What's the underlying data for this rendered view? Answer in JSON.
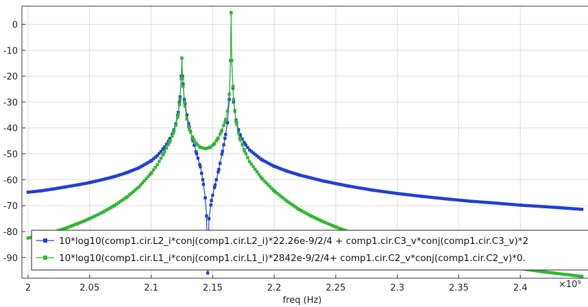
{
  "chart_data": {
    "type": "line",
    "title": "",
    "xlabel": "freq (Hz)",
    "ylabel": "",
    "x_scale_multiplier": "×10⁹",
    "xlim": [
      1.995,
      2.455
    ],
    "ylim": [
      -98,
      7
    ],
    "x_ticks": [
      2,
      2.05,
      2.1,
      2.15,
      2.2,
      2.25,
      2.3,
      2.35,
      2.4
    ],
    "x_tick_labels": [
      "2",
      "2.05",
      "2.1",
      "2.15",
      "2.2",
      "2.25",
      "2.3",
      "2.35",
      "2.4"
    ],
    "y_ticks": [
      0,
      -10,
      -20,
      -30,
      -40,
      -50,
      -60,
      -70,
      -80,
      -90
    ],
    "y_tick_labels": [
      "0",
      "-10",
      "-20",
      "-30",
      "-40",
      "-50",
      "-60",
      "-70",
      "-80",
      "-90"
    ],
    "grid": true,
    "legend_position": "bottom",
    "series": [
      {
        "name": "10*log10(comp1.cir.L2_i*conj(comp1.cir.L2_i)*22.26e-9/2/4 + comp1.cir.C3_v*conj(comp1.cir.C3_v)*2",
        "color": "#1f3fd6",
        "marker": "square",
        "x": [
          2.0,
          2.01,
          2.02,
          2.03,
          2.04,
          2.05,
          2.06,
          2.07,
          2.08,
          2.09,
          2.1,
          2.105,
          2.11,
          2.115,
          2.118,
          2.12,
          2.122,
          2.1235,
          2.1245,
          2.125,
          2.1255,
          2.127,
          2.129,
          2.131,
          2.134,
          2.137,
          2.14,
          2.142,
          2.144,
          2.145,
          2.146,
          2.147,
          2.149,
          2.152,
          2.155,
          2.158,
          2.16,
          2.162,
          2.1635,
          2.1645,
          2.165,
          2.1655,
          2.167,
          2.169,
          2.172,
          2.176,
          2.18,
          2.19,
          2.2,
          2.21,
          2.22,
          2.24,
          2.26,
          2.28,
          2.3,
          2.32,
          2.34,
          2.36,
          2.38,
          2.4,
          2.42,
          2.45
        ],
        "y": [
          -64.8,
          -64.3,
          -63.6,
          -62.8,
          -62.0,
          -61.1,
          -60.0,
          -58.8,
          -57.3,
          -55.4,
          -52.7,
          -50.7,
          -48.0,
          -44.5,
          -41.5,
          -38.5,
          -34.0,
          -28.0,
          -20.0,
          -13.0,
          -20.0,
          -29.0,
          -35.0,
          -39.5,
          -45.0,
          -50.0,
          -55.0,
          -60.0,
          -67.0,
          -74.0,
          -96.0,
          -75.0,
          -68.0,
          -62.0,
          -56.0,
          -49.0,
          -44.0,
          -38.0,
          -29.0,
          -14.0,
          4.5,
          -14.0,
          -30.0,
          -37.0,
          -42.5,
          -46.0,
          -48.5,
          -52.3,
          -54.8,
          -56.6,
          -58.1,
          -60.5,
          -62.4,
          -64.0,
          -65.3,
          -66.4,
          -67.4,
          -68.3,
          -69.0,
          -69.8,
          -70.4,
          -71.4
        ]
      },
      {
        "name": "10*log10(comp1.cir.L1_i*conj(comp1.cir.L1_i)*2842e-9/2/4+ comp1.cir.C2_v*conj(comp1.cir.C2_v)*0.",
        "color": "#2fb82f",
        "marker": "square",
        "x": [
          2.0,
          2.01,
          2.02,
          2.03,
          2.04,
          2.05,
          2.06,
          2.07,
          2.08,
          2.09,
          2.1,
          2.105,
          2.11,
          2.115,
          2.118,
          2.12,
          2.122,
          2.1235,
          2.1245,
          2.125,
          2.1255,
          2.127,
          2.129,
          2.131,
          2.134,
          2.137,
          2.14,
          2.144,
          2.148,
          2.151,
          2.154,
          2.157,
          2.16,
          2.162,
          2.1635,
          2.1645,
          2.165,
          2.1655,
          2.167,
          2.169,
          2.172,
          2.176,
          2.18,
          2.19,
          2.2,
          2.21,
          2.22,
          2.23,
          2.24,
          2.25,
          2.26,
          2.27,
          2.28,
          2.3,
          2.32,
          2.34,
          2.36,
          2.38,
          2.4,
          2.42,
          2.45
        ],
        "y": [
          -82.5,
          -81.5,
          -80.3,
          -78.8,
          -77.0,
          -75.0,
          -72.7,
          -70.0,
          -66.8,
          -62.8,
          -57.5,
          -54.2,
          -50.0,
          -45.5,
          -42.0,
          -39.0,
          -35.0,
          -29.0,
          -21.0,
          -13.0,
          -21.0,
          -30.0,
          -36.5,
          -40.5,
          -44.0,
          -46.3,
          -47.5,
          -48.0,
          -47.5,
          -46.3,
          -44.3,
          -41.5,
          -37.8,
          -33.5,
          -27.0,
          -14.0,
          4.5,
          -14.0,
          -29.0,
          -37.5,
          -44.0,
          -49.0,
          -53.0,
          -59.5,
          -64.3,
          -68.1,
          -71.4,
          -74.0,
          -76.2,
          -78.2,
          -80.0,
          -81.6,
          -83.0,
          -85.6,
          -87.8,
          -89.7,
          -91.4,
          -93.0,
          -94.3,
          -95.6,
          -97.3
        ]
      }
    ]
  }
}
